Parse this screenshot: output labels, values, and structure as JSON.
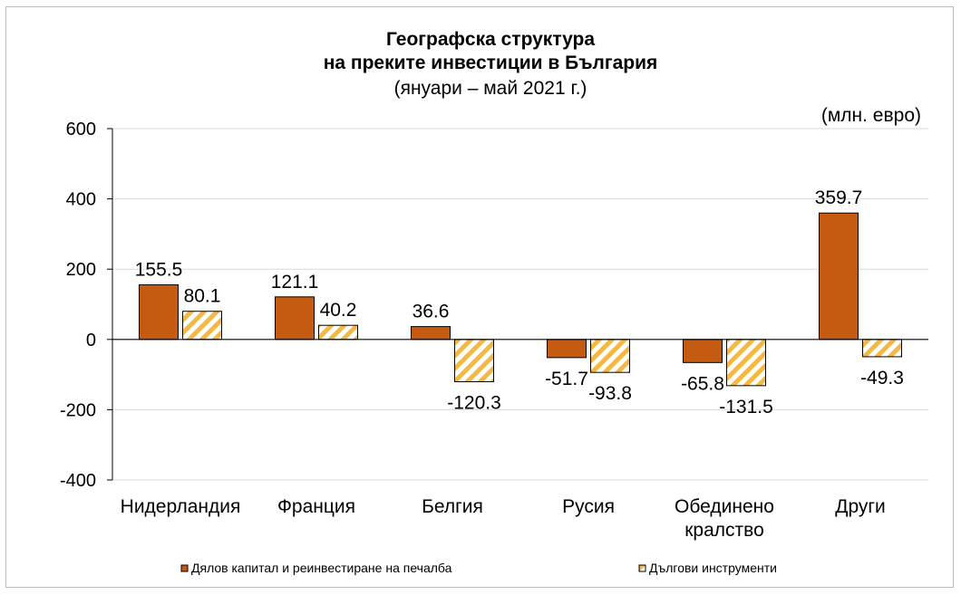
{
  "chart_data": {
    "type": "bar",
    "title": [
      "Географска структура",
      "на преките инвестиции в България"
    ],
    "subtitle": "(януари – май 2021 г.)",
    "unit": "(млн. евро)",
    "categories": [
      [
        "Нидерландия"
      ],
      [
        "Франция"
      ],
      [
        "Белгия"
      ],
      [
        "Русия"
      ],
      [
        "Обединено",
        "кралство"
      ],
      [
        "Други"
      ]
    ],
    "series": [
      {
        "name": "Дялов капитал и реинвестиране на печалба",
        "values": [
          155.5,
          121.1,
          36.6,
          -51.7,
          -65.8,
          359.7
        ],
        "labels": [
          "155.5",
          "121.1",
          "36.6",
          "-51.7",
          "-65.8",
          "359.7"
        ],
        "color": "#c55a11",
        "pattern": "solid"
      },
      {
        "name": "Дългови инструменти",
        "values": [
          80.1,
          40.2,
          -120.3,
          -93.8,
          -131.5,
          -49.3
        ],
        "labels": [
          "80.1",
          "40.2",
          "-120.3",
          "-93.8",
          "-131.5",
          "-49.3"
        ],
        "color": "#f4b942",
        "pattern": "hatched"
      }
    ],
    "yticks": [
      600,
      400,
      200,
      0,
      -200,
      -400
    ],
    "ylim": [
      -400,
      600
    ],
    "grid": true,
    "legend": "bottom"
  }
}
